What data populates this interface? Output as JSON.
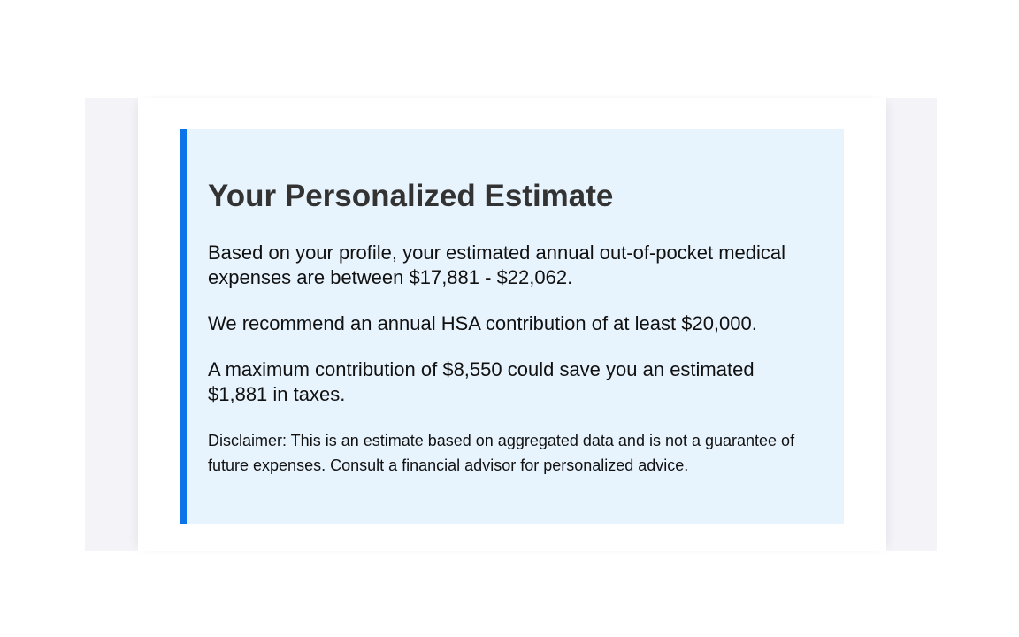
{
  "estimate": {
    "title": "Your Personalized Estimate",
    "expenses_text": "Based on your profile, your estimated annual out-of-pocket medical expenses are between $17,881 - $22,062.",
    "recommendation_text": "We recommend an annual HSA contribution of at least $20,000.",
    "savings_text": "A maximum contribution of $8,550 could save you an estimated $1,881 in taxes.",
    "disclaimer": "Disclaimer: This is an estimate based on aggregated data and is not a guarantee of future expenses. Consult a financial advisor for personalized advice."
  },
  "colors": {
    "accent": "#0a74e8",
    "card_background": "#e8f4fd"
  }
}
